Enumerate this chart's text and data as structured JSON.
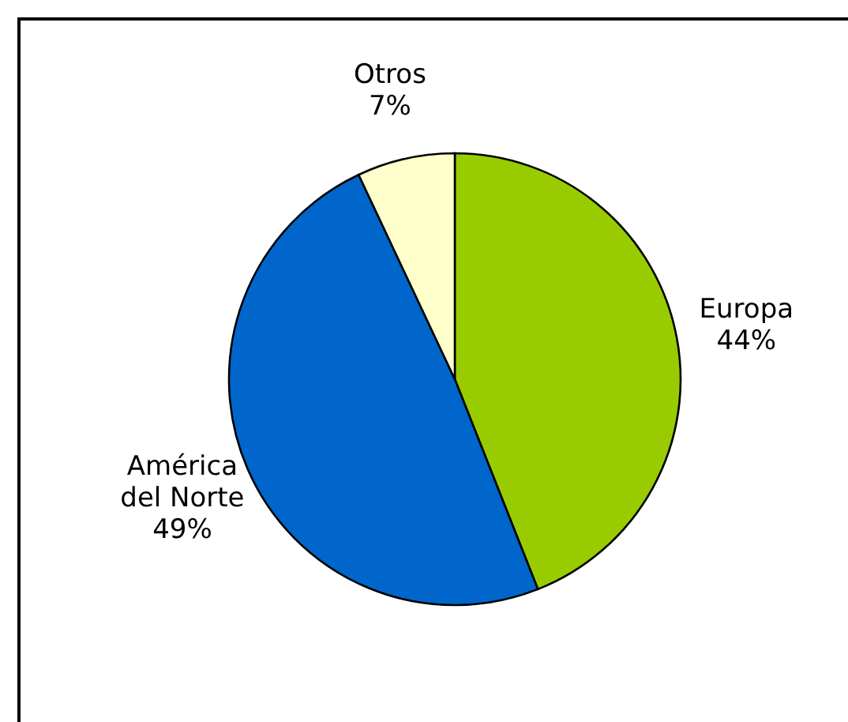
{
  "chart_data": {
    "type": "pie",
    "categories": [
      "Europa",
      "América del Norte",
      "Otros"
    ],
    "values": [
      44,
      49,
      7
    ],
    "value_labels": [
      "44%",
      "49%",
      "7%"
    ],
    "colors": [
      "#99cc00",
      "#0066cc",
      "#ffffcc"
    ]
  }
}
